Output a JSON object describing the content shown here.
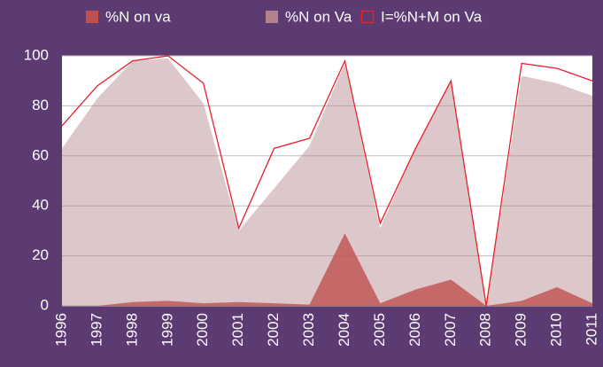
{
  "chart_data": {
    "type": "area",
    "categories": [
      "1996",
      "1997",
      "1998",
      "1999",
      "2000",
      "2001",
      "2002",
      "2003",
      "2004",
      "2005",
      "2006",
      "2007",
      "2008",
      "2009",
      "2010",
      "2011"
    ],
    "series": [
      {
        "name": "%N on va",
        "color": "#c0504d",
        "style": "area",
        "values": [
          0,
          0,
          1.5,
          2,
          1,
          1.5,
          1,
          0.5,
          29,
          1,
          6.5,
          10.5,
          0,
          2,
          7.5,
          1
        ]
      },
      {
        "name": "%N on Va",
        "color": "#b2838a",
        "style": "area",
        "values": [
          63,
          83,
          98,
          99,
          81,
          30,
          47,
          64,
          97,
          31,
          63,
          90,
          0,
          92,
          89,
          84
        ]
      },
      {
        "name": "I=%N+M on Va",
        "color": "#e8202a",
        "style": "line",
        "values": [
          72,
          88,
          98,
          100,
          89,
          31,
          63,
          67,
          98,
          33,
          63,
          90,
          0,
          97,
          95,
          90
        ]
      }
    ],
    "ylim": [
      0,
      100
    ],
    "yticks": [
      0,
      20,
      40,
      60,
      80,
      100
    ],
    "grid": true,
    "legend": "top"
  }
}
